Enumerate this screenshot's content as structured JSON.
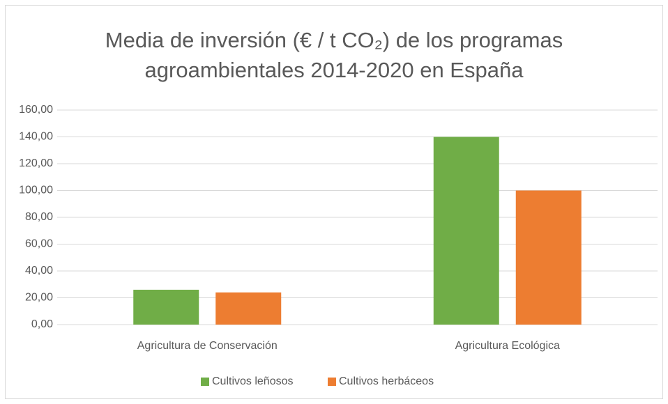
{
  "chart_data": {
    "type": "bar",
    "title": [
      "Media de inversión (€ / t CO₂) de los programas",
      "agroambientales 2014-2020 en España"
    ],
    "categories": [
      "Agricultura de Conservación",
      "Agricultura Ecológica"
    ],
    "series": [
      {
        "name": "Cultivos leñosos",
        "color": "#70ad47",
        "values": [
          26,
          140
        ]
      },
      {
        "name": "Cultivos herbáceos",
        "color": "#ed7d31",
        "values": [
          24,
          100
        ]
      }
    ],
    "ylim": [
      0,
      160
    ],
    "yticks": [
      {
        "value": 0,
        "label": "0,00"
      },
      {
        "value": 20,
        "label": "20,00"
      },
      {
        "value": 40,
        "label": "40,00"
      },
      {
        "value": 60,
        "label": "60,00"
      },
      {
        "value": 80,
        "label": "80,00"
      },
      {
        "value": 100,
        "label": "100,00"
      },
      {
        "value": 120,
        "label": "120,00"
      },
      {
        "value": 140,
        "label": "140,00"
      },
      {
        "value": 160,
        "label": "160,00"
      }
    ],
    "grid": true,
    "legend": "bottom"
  }
}
